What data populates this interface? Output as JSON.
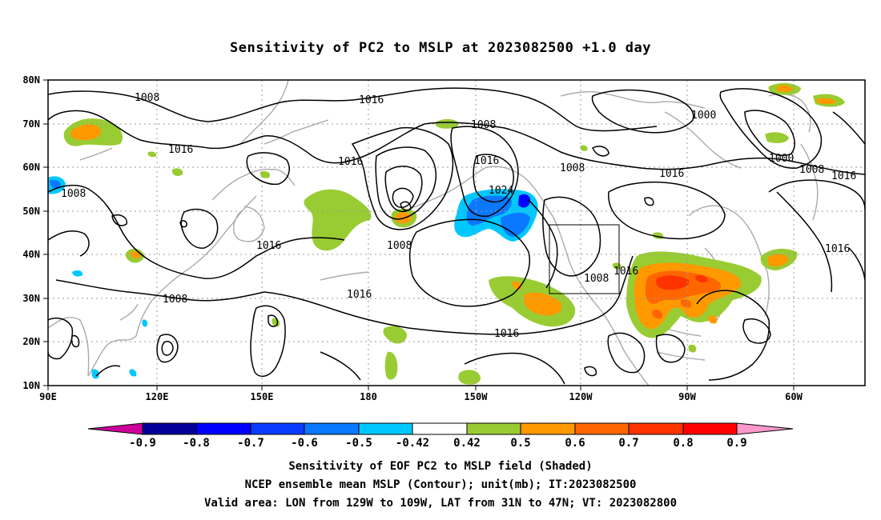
{
  "title": "Sensitivity of PC2 to MSLP at 2023082500 +1.0 day",
  "map": {
    "lat_labels": [
      "80N",
      "70N",
      "60N",
      "50N",
      "40N",
      "30N",
      "20N",
      "10N"
    ],
    "lon_labels": [
      "90E",
      "120E",
      "150E",
      "180",
      "150W",
      "120W",
      "90W",
      "60W"
    ],
    "contour_labels": [
      {
        "text": "1008",
        "id": "c1008-nw"
      },
      {
        "text": "1016",
        "id": "c1016-n"
      },
      {
        "text": "1008",
        "id": "c1008-n"
      },
      {
        "text": "1000",
        "id": "c1000-ne"
      },
      {
        "text": "1016",
        "id": "c1016-w"
      },
      {
        "text": "1016",
        "id": "c1016-mid"
      },
      {
        "text": "1016",
        "id": "c1016-c"
      },
      {
        "text": "1008",
        "id": "c1008-cne"
      },
      {
        "text": "1016",
        "id": "c1016-e1"
      },
      {
        "text": "1000",
        "id": "c1000-e"
      },
      {
        "text": "1008",
        "id": "c1008-e"
      },
      {
        "text": "1016",
        "id": "c1016-e2"
      },
      {
        "text": "1008",
        "id": "c1008-w"
      },
      {
        "text": "1024",
        "id": "c1024"
      },
      {
        "text": "1008",
        "id": "c1008-low"
      },
      {
        "text": "1016",
        "id": "c1016-wc"
      },
      {
        "text": "1008",
        "id": "c1008-sw"
      },
      {
        "text": "1016",
        "id": "c1016-sc"
      },
      {
        "text": "1016",
        "id": "c1016-s"
      },
      {
        "text": "1008",
        "id": "c1008-mex"
      },
      {
        "text": "1016",
        "id": "c1016-mex"
      },
      {
        "text": "1016",
        "id": "c1016-atl"
      }
    ]
  },
  "colorbar": {
    "labels": [
      "-0.9",
      "-0.8",
      "-0.7",
      "-0.6",
      "-0.5",
      "-0.42",
      "0.42",
      "0.5",
      "0.6",
      "0.7",
      "0.8",
      "0.9"
    ],
    "colors": [
      "#000099",
      "#0000ff",
      "#0a3cff",
      "#0a78ff",
      "#00c8ff",
      "#ffffff",
      "#99cc33",
      "#ff9900",
      "#ff6600",
      "#ff3300",
      "#ff0000"
    ],
    "under_color": "#cc0099",
    "over_color": "#ff99cc"
  },
  "captions": {
    "line1": "Sensitivity of EOF PC2 to MSLP field (Shaded)",
    "line2": "NCEP ensemble mean MSLP (Contour); unit(mb); IT:2023082500",
    "line3": "Valid area: LON from 129W to 109W, LAT from 31N to 47N; VT: 2023082800"
  }
}
